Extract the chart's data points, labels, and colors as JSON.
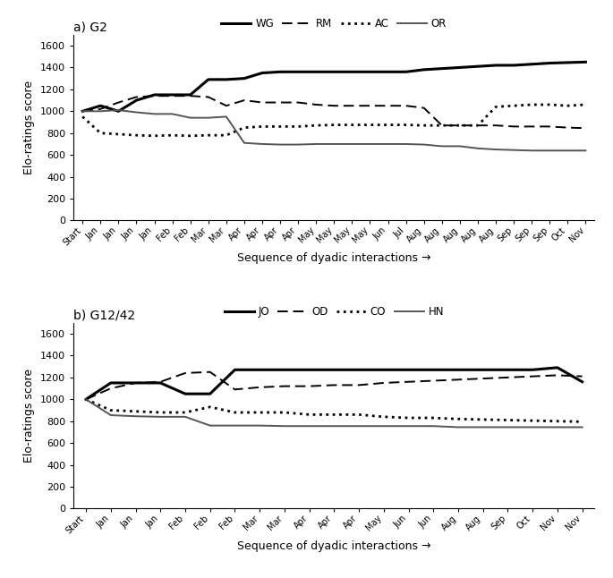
{
  "panel_a": {
    "title": "a) G2",
    "x_labels": [
      "Start",
      "Jan",
      "Jan",
      "Jan",
      "Jan",
      "Feb",
      "Feb",
      "Mar",
      "Mar",
      "Apr",
      "Apr",
      "Apr",
      "Apr",
      "May",
      "May",
      "May",
      "May",
      "Jun",
      "Jul",
      "Aug",
      "Aug",
      "Aug",
      "Aug",
      "Aug",
      "Sep",
      "Sep",
      "Sep",
      "Oct",
      "Nov"
    ],
    "series": {
      "WG": {
        "style": "solid",
        "linewidth": 2.2,
        "color": "#000000",
        "y": [
          1000,
          1050,
          1000,
          1100,
          1150,
          1150,
          1150,
          1290,
          1290,
          1300,
          1350,
          1360,
          1360,
          1360,
          1360,
          1360,
          1360,
          1360,
          1360,
          1380,
          1390,
          1400,
          1410,
          1420,
          1420,
          1430,
          1440,
          1445,
          1450
        ]
      },
      "RM": {
        "style": "dashed",
        "linewidth": 1.4,
        "color": "#000000",
        "dashes": [
          6,
          3
        ],
        "y": [
          1000,
          1020,
          1080,
          1130,
          1140,
          1140,
          1140,
          1130,
          1050,
          1100,
          1080,
          1080,
          1080,
          1060,
          1050,
          1050,
          1050,
          1050,
          1050,
          1030,
          870,
          870,
          870,
          870,
          860,
          860,
          860,
          850,
          845
        ]
      },
      "AC": {
        "style": "dotted",
        "linewidth": 2.0,
        "color": "#000000",
        "dashes": [
          1.5,
          2
        ],
        "y": [
          950,
          800,
          790,
          780,
          775,
          780,
          775,
          780,
          780,
          850,
          860,
          860,
          860,
          870,
          875,
          875,
          875,
          875,
          875,
          870,
          870,
          870,
          870,
          1040,
          1050,
          1060,
          1060,
          1050,
          1060
        ]
      },
      "OR": {
        "style": "solid",
        "linewidth": 1.4,
        "color": "#555555",
        "y": [
          1000,
          1000,
          1010,
          990,
          975,
          975,
          940,
          940,
          950,
          710,
          700,
          695,
          695,
          700,
          700,
          700,
          700,
          700,
          700,
          695,
          680,
          680,
          660,
          650,
          645,
          640,
          640,
          640,
          640
        ]
      }
    },
    "legend_labels": [
      "WG",
      "RM",
      "AC",
      "OR"
    ],
    "ylim": [
      0,
      1700
    ],
    "yticks": [
      0,
      200,
      400,
      600,
      800,
      1000,
      1200,
      1400,
      1600
    ],
    "ylabel": "Elo-ratings score",
    "xlabel": "Sequence of dyadic interactions →"
  },
  "panel_b": {
    "title": "b) G12/42",
    "x_labels": [
      "Start",
      "Jan",
      "Jan",
      "Jan",
      "Feb",
      "Feb",
      "Feb",
      "Mar",
      "Mar",
      "Apr",
      "Apr",
      "Apr",
      "May",
      "Jun",
      "Jun",
      "Aug",
      "Aug",
      "Sep",
      "Oct",
      "Nov",
      "Nov"
    ],
    "series": {
      "JO": {
        "style": "solid",
        "linewidth": 2.2,
        "color": "#000000",
        "y": [
          1000,
          1150,
          1150,
          1150,
          1050,
          1050,
          1270,
          1270,
          1270,
          1270,
          1270,
          1270,
          1270,
          1270,
          1270,
          1270,
          1270,
          1270,
          1270,
          1290,
          1160
        ]
      },
      "OD": {
        "style": "dashed",
        "linewidth": 1.4,
        "color": "#000000",
        "dashes": [
          6,
          3
        ],
        "y": [
          1000,
          1100,
          1150,
          1160,
          1240,
          1250,
          1090,
          1110,
          1120,
          1120,
          1130,
          1130,
          1150,
          1160,
          1170,
          1180,
          1190,
          1200,
          1210,
          1220,
          1210
        ]
      },
      "CO": {
        "style": "dotted",
        "linewidth": 2.0,
        "color": "#000000",
        "dashes": [
          1.5,
          2
        ],
        "y": [
          1000,
          900,
          890,
          880,
          880,
          930,
          880,
          880,
          880,
          860,
          860,
          860,
          840,
          830,
          830,
          820,
          815,
          810,
          805,
          800,
          795
        ]
      },
      "HN": {
        "style": "solid",
        "linewidth": 1.4,
        "color": "#555555",
        "y": [
          1000,
          855,
          845,
          840,
          840,
          760,
          760,
          760,
          755,
          755,
          755,
          755,
          755,
          755,
          755,
          745,
          745,
          745,
          745,
          745,
          745
        ]
      }
    },
    "legend_labels": [
      "JO",
      "OD",
      "CO",
      "HN"
    ],
    "ylim": [
      0,
      1700
    ],
    "yticks": [
      0,
      200,
      400,
      600,
      800,
      1000,
      1200,
      1400,
      1600
    ],
    "ylabel": "Elo-ratings score",
    "xlabel": "Sequence of dyadic interactions →"
  }
}
